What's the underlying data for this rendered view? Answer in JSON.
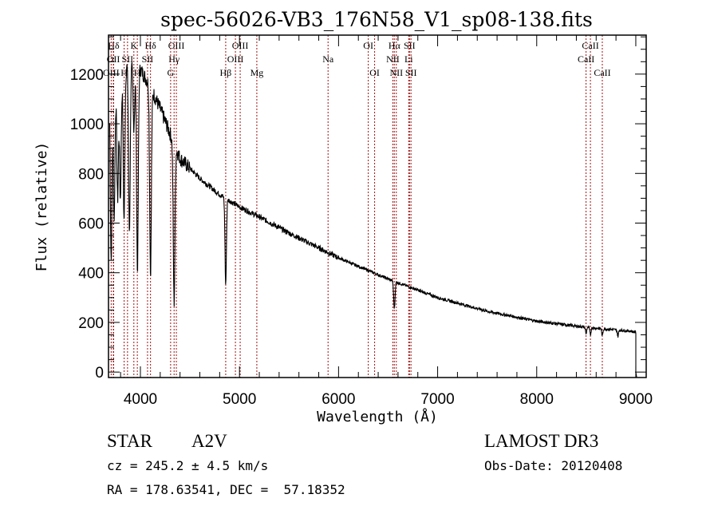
{
  "chart_data": {
    "type": "line",
    "title": "spec-56026-VB3_176N58_V1_sp08-138.fits",
    "xlabel": "Wavelength (Å)",
    "ylabel": "Flux (relative)",
    "xlim": [
      3678,
      9105
    ],
    "ylim": [
      -22,
      1357
    ],
    "x_ticks": [
      4000,
      5000,
      6000,
      7000,
      8000,
      9000
    ],
    "y_ticks": [
      0,
      200,
      400,
      600,
      800,
      1000,
      1200
    ],
    "x_minor_step": 200,
    "y_minor_step": 50,
    "grid": false,
    "line_color": "#000000",
    "marker_color": "#a01010",
    "series": [
      {
        "name": "spectrum",
        "continuum": {
          "x": [
            3700,
            3800,
            3900,
            4000,
            4100,
            4200,
            4300,
            4400,
            4600,
            4800,
            5000,
            5200,
            5500,
            6000,
            6500,
            7000,
            7500,
            8000,
            8500,
            8800,
            8950,
            9000
          ],
          "y": [
            1150,
            1220,
            1250,
            1220,
            1150,
            1060,
            960,
            860,
            780,
            715,
            665,
            625,
            560,
            460,
            375,
            300,
            245,
            205,
            180,
            170,
            165,
            160
          ]
        },
        "absorption_lines": [
          {
            "x": 3705,
            "depth": 700
          },
          {
            "x": 3735,
            "depth": 550
          },
          {
            "x": 3770,
            "depth": 500
          },
          {
            "x": 3798,
            "depth": 520
          },
          {
            "x": 3835,
            "depth": 620
          },
          {
            "x": 3889,
            "depth": 680
          },
          {
            "x": 3934,
            "depth": 250
          },
          {
            "x": 3970,
            "depth": 820
          },
          {
            "x": 4102,
            "depth": 750
          },
          {
            "x": 4340,
            "depth": 640
          },
          {
            "x": 4861,
            "depth": 350
          },
          {
            "x": 6563,
            "depth": 110
          },
          {
            "x": 8498,
            "depth": 25
          },
          {
            "x": 8542,
            "depth": 30
          },
          {
            "x": 8662,
            "depth": 30
          },
          {
            "x": 8820,
            "depth": 25
          }
        ],
        "cutoff_x": 9000
      }
    ],
    "line_markers": [
      {
        "label": "Hδ",
        "x": 3730,
        "row": 0
      },
      {
        "label": "OII",
        "x": 3727,
        "row": 1
      },
      {
        "label": "OIII",
        "x": 3705,
        "row": 2
      },
      {
        "label": "K",
        "x": 3934,
        "row": 0
      },
      {
        "label": "H",
        "x": 3836,
        "row": 2
      },
      {
        "label": "SII",
        "x": 3870,
        "row": 1
      },
      {
        "label": "H",
        "x": 3969,
        "row": 2
      },
      {
        "label": "Hδ",
        "x": 4102,
        "row": 0
      },
      {
        "label": "SII",
        "x": 4072,
        "row": 1
      },
      {
        "label": "OIII",
        "x": 4363,
        "row": 0
      },
      {
        "label": "Hγ",
        "x": 4340,
        "row": 1
      },
      {
        "label": "G",
        "x": 4305,
        "row": 2
      },
      {
        "label": "OIII",
        "x": 5007,
        "row": 0
      },
      {
        "label": "OIII",
        "x": 4959,
        "row": 1
      },
      {
        "label": "Hβ",
        "x": 4861,
        "row": 2
      },
      {
        "label": "Mg",
        "x": 5175,
        "row": 2
      },
      {
        "label": "Na",
        "x": 5894,
        "row": 1
      },
      {
        "label": "OI",
        "x": 6300,
        "row": 0
      },
      {
        "label": "OI",
        "x": 6364,
        "row": 2
      },
      {
        "label": "Hα",
        "x": 6563,
        "row": 0
      },
      {
        "label": "NII",
        "x": 6548,
        "row": 1
      },
      {
        "label": "NII",
        "x": 6583,
        "row": 2
      },
      {
        "label": "SII",
        "x": 6716,
        "row": 0
      },
      {
        "label": "Li",
        "x": 6708,
        "row": 1
      },
      {
        "label": "SII",
        "x": 6731,
        "row": 2
      },
      {
        "label": "CaII",
        "x": 8542,
        "row": 0
      },
      {
        "label": "CaII",
        "x": 8498,
        "row": 1
      },
      {
        "label": "CaII",
        "x": 8662,
        "row": 2
      }
    ]
  },
  "info": {
    "object_class": "STAR",
    "subclass": "A2V",
    "survey": "LAMOST DR3",
    "redshift": "cz = 245.2 ± 4.5 km/s",
    "obs_date": "Obs-Date: 20120408",
    "coords": "RA = 178.63541, DEC =  57.18352"
  }
}
